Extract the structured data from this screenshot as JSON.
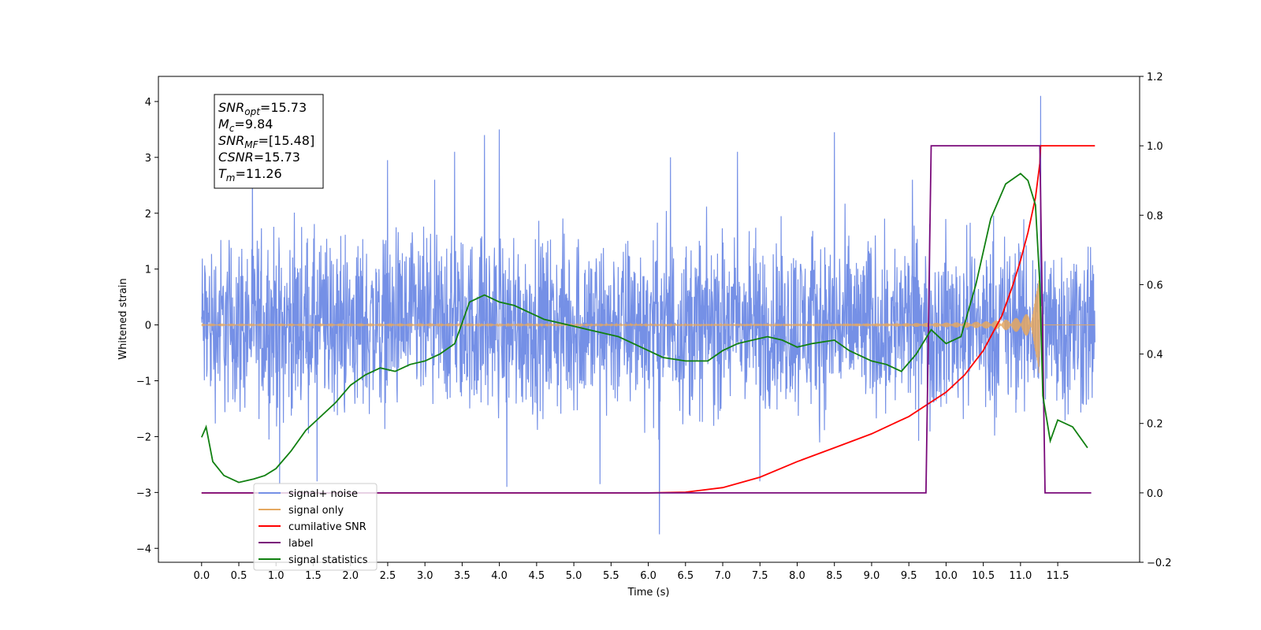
{
  "chart_data": {
    "type": "line",
    "xlabel": "Time (s)",
    "ylabel_left": "Whitened strain",
    "ylabel_right": "",
    "xlim": [
      -0.58,
      12.6
    ],
    "ylim_left": [
      -4.25,
      4.45
    ],
    "ylim_right": [
      -0.2,
      1.2
    ],
    "x_ticks": [
      0.0,
      0.5,
      1.0,
      1.5,
      2.0,
      2.5,
      3.0,
      3.5,
      4.0,
      4.5,
      5.0,
      5.5,
      6.0,
      6.5,
      7.0,
      7.5,
      8.0,
      8.5,
      9.0,
      9.5,
      10.0,
      10.5,
      11.0,
      11.5
    ],
    "x_tick_labels": [
      "0.0",
      "0.5",
      "1.0",
      "1.5",
      "2.0",
      "2.5",
      "3.0",
      "3.5",
      "4.0",
      "4.5",
      "5.0",
      "5.5",
      "6.0",
      "6.5",
      "7.0",
      "7.5",
      "8.0",
      "8.5",
      "9.0",
      "9.5",
      "10.0",
      "10.5",
      "11.0",
      "11.5"
    ],
    "y_left_ticks": [
      -4,
      -3,
      -2,
      -1,
      0,
      1,
      2,
      3,
      4
    ],
    "y_left_tick_labels": [
      "−4",
      "−3",
      "−2",
      "−1",
      "0",
      "1",
      "2",
      "3",
      "4"
    ],
    "y_right_ticks": [
      -0.2,
      0.0,
      0.2,
      0.4,
      0.6,
      0.8,
      1.0,
      1.2
    ],
    "y_right_tick_labels": [
      "−0.2",
      "0.0",
      "0.2",
      "0.4",
      "0.6",
      "0.8",
      "1.0",
      "1.2"
    ],
    "grid": false,
    "legend_position": "lower-left",
    "annotation": {
      "lines": [
        {
          "main": "SNR",
          "sub": "opt",
          "value": "=15.73"
        },
        {
          "main": "M",
          "sub": "c",
          "value": "=9.84"
        },
        {
          "main": "SNR",
          "sub": "MF",
          "value": "=[15.48]"
        },
        {
          "main": "CSNR",
          "sub": "",
          "value": "=15.73"
        },
        {
          "main": "T",
          "sub": "m",
          "value": "=11.26"
        }
      ]
    },
    "series": [
      {
        "name": "signal+ noise",
        "axis": "left",
        "color": "#7590e6",
        "kind": "noise",
        "x_range": [
          0.0,
          12.0
        ],
        "envelope": [
          -2.0,
          2.0
        ],
        "spikes": [
          [
            4.0,
            3.5
          ],
          [
            3.8,
            3.4
          ],
          [
            6.15,
            -3.75
          ],
          [
            11.27,
            4.1
          ],
          [
            8.5,
            3.45
          ],
          [
            2.5,
            2.95
          ],
          [
            3.4,
            3.1
          ],
          [
            1.55,
            -2.8
          ],
          [
            1.05,
            -2.85
          ],
          [
            4.1,
            -2.9
          ],
          [
            5.35,
            -2.85
          ],
          [
            9.55,
            2.6
          ],
          [
            7.5,
            -2.8
          ],
          [
            6.3,
            3.0
          ],
          [
            7.2,
            3.1
          ]
        ]
      },
      {
        "name": "signal only",
        "axis": "left",
        "color": "#e5a860",
        "kind": "chirp",
        "x_range": [
          0.0,
          12.0
        ],
        "merger_time": 11.26,
        "peak_amplitude": 1.7
      },
      {
        "name": "cumilative SNR",
        "axis": "right",
        "color": "#ff0000",
        "x": [
          0.0,
          6.0,
          6.5,
          7.0,
          7.5,
          8.0,
          8.5,
          9.0,
          9.5,
          10.0,
          10.25,
          10.5,
          10.75,
          10.9,
          11.0,
          11.1,
          11.2,
          11.26,
          11.27,
          12.0
        ],
        "y": [
          0.0,
          0.0,
          0.002,
          0.015,
          0.045,
          0.09,
          0.13,
          0.17,
          0.22,
          0.29,
          0.34,
          0.41,
          0.51,
          0.6,
          0.67,
          0.75,
          0.85,
          0.95,
          1.0,
          1.0
        ]
      },
      {
        "name": "label",
        "axis": "right",
        "color": "#7a0a7a",
        "x": [
          0.0,
          9.73,
          9.8,
          11.26,
          11.33,
          11.95
        ],
        "y": [
          0.0,
          0.0,
          1.0,
          1.0,
          0.0,
          0.0
        ]
      },
      {
        "name": "signal statistics",
        "axis": "right",
        "color": "#118011",
        "x": [
          0.0,
          0.06,
          0.15,
          0.3,
          0.5,
          0.7,
          0.85,
          1.0,
          1.2,
          1.4,
          1.6,
          1.8,
          2.0,
          2.2,
          2.4,
          2.6,
          2.8,
          3.0,
          3.2,
          3.4,
          3.5,
          3.6,
          3.7,
          3.8,
          3.9,
          4.0,
          4.2,
          4.4,
          4.5,
          4.6,
          4.8,
          5.0,
          5.2,
          5.4,
          5.6,
          5.8,
          6.0,
          6.2,
          6.5,
          6.8,
          7.0,
          7.2,
          7.4,
          7.6,
          7.8,
          8.0,
          8.2,
          8.5,
          8.7,
          9.0,
          9.2,
          9.4,
          9.6,
          9.8,
          10.0,
          10.2,
          10.4,
          10.6,
          10.8,
          11.0,
          11.1,
          11.2,
          11.26,
          11.3,
          11.4,
          11.5,
          11.7,
          11.9
        ],
        "y": [
          0.16,
          0.19,
          0.09,
          0.05,
          0.03,
          0.04,
          0.05,
          0.07,
          0.12,
          0.18,
          0.22,
          0.26,
          0.31,
          0.34,
          0.36,
          0.35,
          0.37,
          0.38,
          0.4,
          0.43,
          0.49,
          0.55,
          0.56,
          0.57,
          0.56,
          0.55,
          0.54,
          0.52,
          0.51,
          0.5,
          0.49,
          0.48,
          0.47,
          0.46,
          0.45,
          0.43,
          0.41,
          0.39,
          0.38,
          0.38,
          0.41,
          0.43,
          0.44,
          0.45,
          0.44,
          0.42,
          0.43,
          0.44,
          0.41,
          0.38,
          0.37,
          0.35,
          0.4,
          0.47,
          0.43,
          0.45,
          0.6,
          0.79,
          0.89,
          0.92,
          0.9,
          0.83,
          0.6,
          0.28,
          0.15,
          0.21,
          0.19,
          0.13
        ]
      }
    ]
  }
}
